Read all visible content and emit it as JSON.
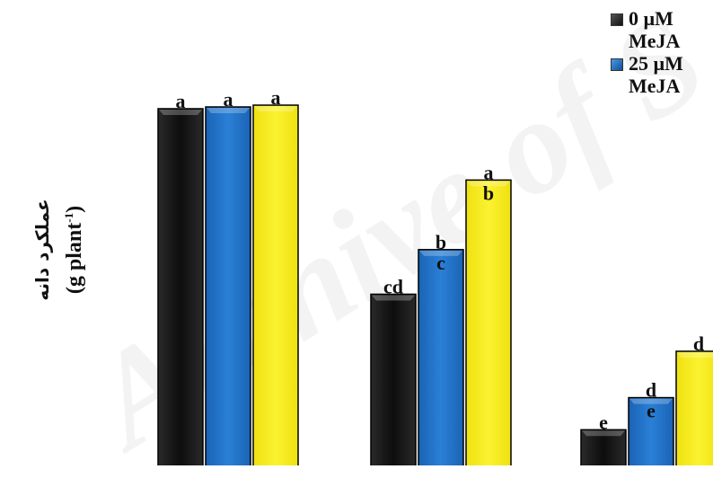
{
  "y_axis_label": {
    "line1": "عملکرد دانه",
    "line2_main": "(g plant",
    "line2_sup": "-1",
    "line2_end": ")"
  },
  "legend": [
    {
      "label": "0 µM MeJA",
      "color": "#1a1a1a"
    },
    {
      "label": "25 µM MeJA",
      "color": "#1f6fc2"
    }
  ],
  "watermark_text": "Archive of S",
  "colors": {
    "series_0": "#1a1a1a",
    "series_1": "#1f6fc2",
    "series_2": "#f4ea13"
  },
  "chart_data": {
    "type": "bar",
    "categories": [
      "",
      "",
      ""
    ],
    "ylim": [
      0,
      10
    ],
    "series": [
      {
        "name": "0 µM MeJA",
        "values": [
          10,
          4.8,
          1.0
        ],
        "labels": [
          [
            "a"
          ],
          [
            "cd"
          ],
          [
            "e"
          ]
        ]
      },
      {
        "name": "25 µM MeJA",
        "values": [
          10.05,
          6.05,
          1.9
        ],
        "labels": [
          [
            "a"
          ],
          [
            "b",
            "c"
          ],
          [
            "d",
            "e"
          ]
        ]
      },
      {
        "values": [
          10.1,
          8.0,
          3.2
        ],
        "labels": [
          [
            "a"
          ],
          [
            "a",
            "b"
          ],
          [
            "d"
          ]
        ]
      }
    ]
  }
}
